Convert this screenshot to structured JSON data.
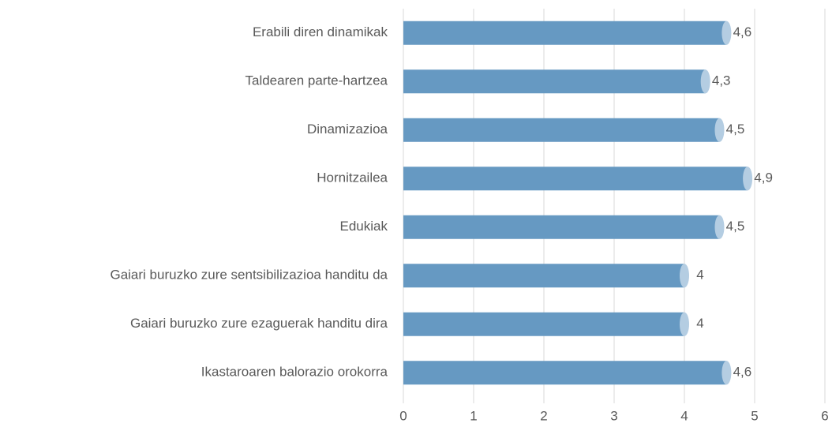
{
  "chart_data": {
    "type": "bar",
    "orientation": "horizontal",
    "categories": [
      "Erabili diren dinamikak",
      "Taldearen parte-hartzea",
      "Dinamizazioa",
      "Hornitzailea",
      "Edukiak",
      "Gaiari buruzko zure sentsibilizazioa handitu da",
      "Gaiari buruzko zure ezaguerak handitu dira",
      "Ikastaroaren balorazio orokorra"
    ],
    "values": [
      4.6,
      4.3,
      4.5,
      4.9,
      4.5,
      4,
      4,
      4.6
    ],
    "value_labels": [
      "4,6",
      "4,3",
      "4,5",
      "4,9",
      "4,5",
      "4",
      "4",
      "4,6"
    ],
    "color": "#6699c2",
    "xlim": [
      0,
      6
    ],
    "xticks": [
      0,
      1,
      2,
      3,
      4,
      5,
      6
    ],
    "grid": true
  }
}
